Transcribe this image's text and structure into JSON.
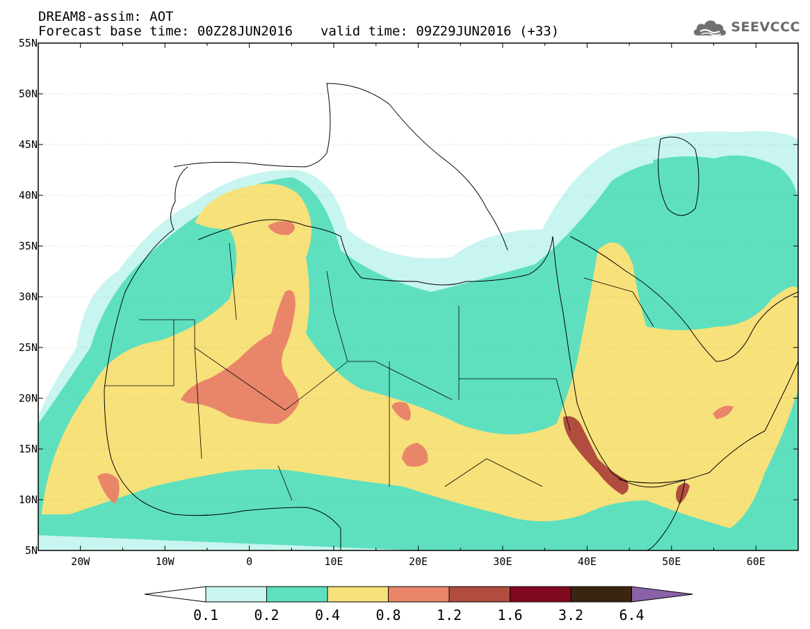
{
  "header": {
    "title": "DREAM8-assim: AOT",
    "base_time": "Forecast base time: 00Z28JUN2016",
    "valid_time": "valid time: 09Z29JUN2016 (+33)"
  },
  "logo": {
    "text": "SEEVCCC",
    "icon": "cloud-logo-icon"
  },
  "map": {
    "lat_labels": [
      "55N",
      "50N",
      "45N",
      "40N",
      "35N",
      "30N",
      "25N",
      "20N",
      "15N",
      "10N",
      "5N"
    ],
    "lon_labels": [
      "20W",
      "10W",
      "0",
      "10E",
      "20E",
      "30E",
      "40E",
      "50E",
      "60E"
    ],
    "lat_range": [
      5,
      55
    ],
    "lon_range": [
      -25,
      65
    ]
  },
  "colorbar": {
    "labels": [
      "0.1",
      "0.2",
      "0.4",
      "0.8",
      "1.2",
      "1.6",
      "3.2",
      "6.4"
    ],
    "colors": [
      "#c8f5ef",
      "#5ee0bf",
      "#f7e17a",
      "#e9866a",
      "#b04d3f",
      "#820a20",
      "#3b2410",
      "#8b62a8"
    ],
    "under_color": "#ffffff"
  }
}
